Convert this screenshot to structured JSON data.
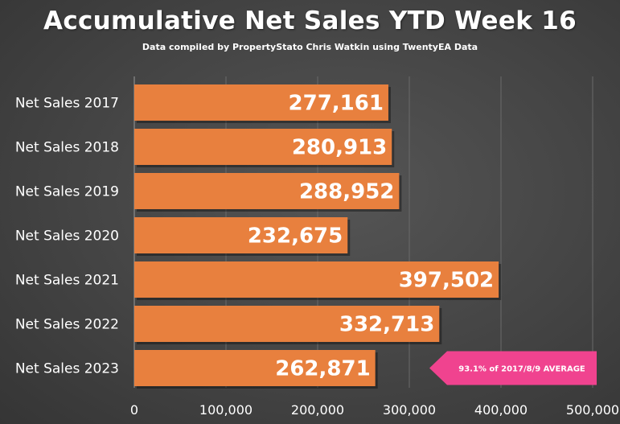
{
  "chart_data": {
    "type": "bar",
    "orientation": "horizontal",
    "title": "Accumulative Net Sales YTD Week 16",
    "subtitle": "Data compiled by PropertyStato Chris Watkin using TwentyEA Data",
    "categories": [
      "Net Sales 2017",
      "Net Sales 2018",
      "Net Sales 2019",
      "Net Sales 2020",
      "Net Sales 2021",
      "Net Sales 2022",
      "Net Sales 2023"
    ],
    "values": [
      277161,
      280913,
      288952,
      232675,
      397502,
      332713,
      262871
    ],
    "value_labels": [
      "277,161",
      "280,913",
      "288,952",
      "232,675",
      "397,502",
      "332,713",
      "262,871"
    ],
    "xlim": [
      0,
      500000
    ],
    "ticks": [
      0,
      100000,
      200000,
      300000,
      400000,
      500000
    ],
    "tick_labels": [
      "0",
      "100,000",
      "200,000",
      "300,000",
      "400,000",
      "500,000"
    ],
    "grid": true,
    "bar_color": "#E8803E",
    "annotation": {
      "text": "93.1% of 2017/8/9 AVERAGE",
      "target_category": "Net Sales 2023",
      "color": "#F0438F"
    }
  }
}
